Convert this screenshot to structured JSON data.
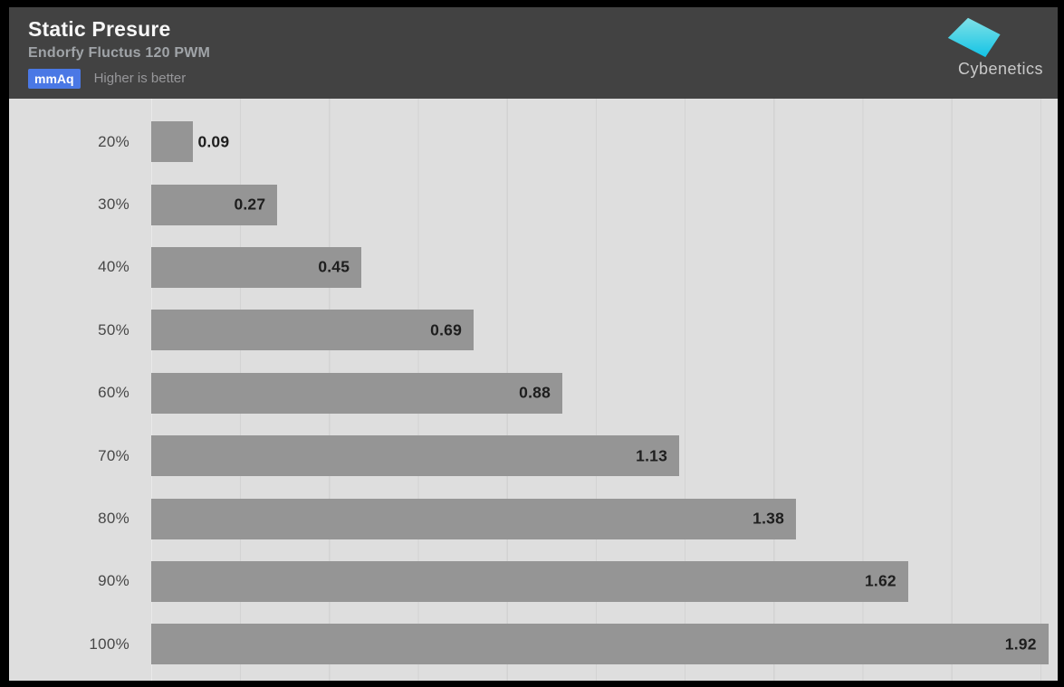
{
  "header": {
    "title": "Static Presure",
    "subtitle": "Endorfy Fluctus 120 PWM",
    "unit_badge": "mmAq",
    "note": "Higher is better"
  },
  "logo": {
    "text": "Cybenetics"
  },
  "colors": {
    "frame": "#000000",
    "header_bg": "#424242",
    "title": "#f7f7f7",
    "subtitle": "#a0a4a8",
    "badge_bg": "#4a78e5",
    "badge_text": "#ffffff",
    "note": "#97979a",
    "chart_bg": "#dedede",
    "gridline": "#d3d3d3",
    "bar": "#959595",
    "value_label": "#1e1e1e",
    "category_label": "#474747",
    "logo_text": "#c9c9c9",
    "logo_cyan_top": "#7fe0e8",
    "logo_cyan_bottom": "#12c3e6"
  },
  "chart_data": {
    "type": "bar",
    "orientation": "horizontal",
    "title": "Static Presure",
    "subtitle": "Endorfy Fluctus 120 PWM",
    "unit": "mmAq",
    "note": "Higher is better",
    "categories": [
      "20%",
      "30%",
      "40%",
      "50%",
      "60%",
      "70%",
      "80%",
      "90%",
      "100%"
    ],
    "values": [
      0.09,
      0.27,
      0.45,
      0.69,
      0.88,
      1.13,
      1.38,
      1.62,
      1.92
    ],
    "xlim": [
      0,
      1.94
    ],
    "grid": "vertical-only",
    "legend": "none",
    "value_label_position": "bar-end"
  }
}
